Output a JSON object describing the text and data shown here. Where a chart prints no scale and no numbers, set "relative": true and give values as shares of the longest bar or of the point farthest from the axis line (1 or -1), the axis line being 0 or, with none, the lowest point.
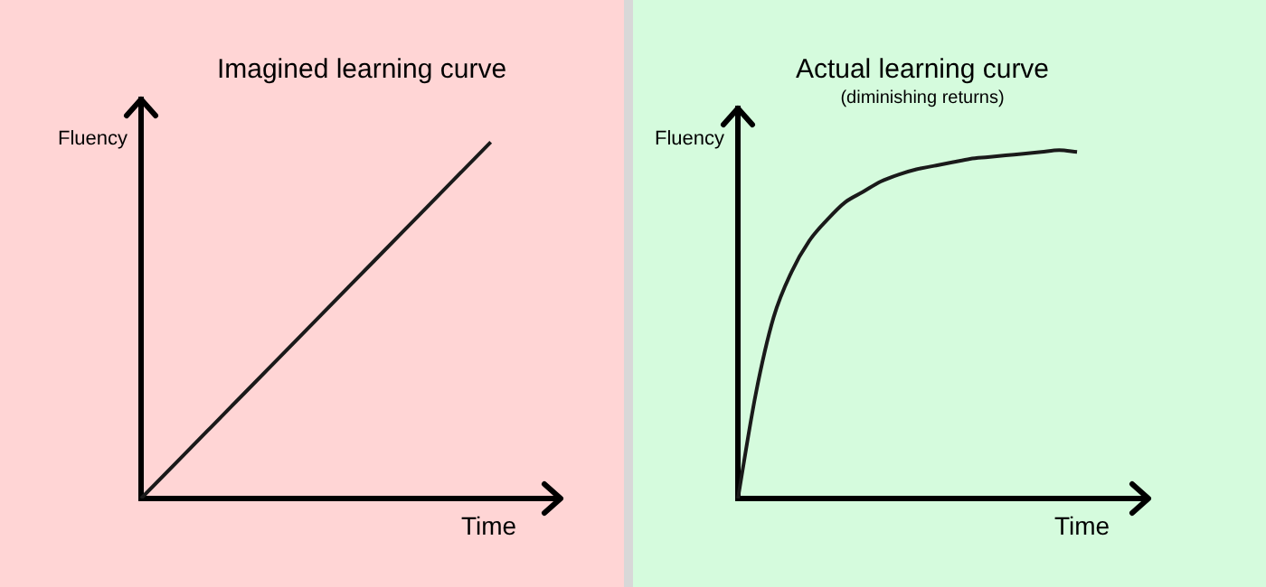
{
  "chart_data": [
    {
      "type": "line",
      "title": "Imagined learning curve",
      "xlabel": "Time",
      "ylabel": "Fluency",
      "relative": true,
      "tick_labels": false,
      "marker": "none",
      "line_style": "solid",
      "categories": [
        null,
        null,
        null,
        null,
        null,
        null,
        null
      ],
      "series": [
        {
          "color": "#1a1a1a",
          "values": [
            0,
            0.2,
            0.4,
            0.6,
            0.8,
            1,
            null
          ]
        }
      ]
    },
    {
      "type": "line",
      "title": "Actual learning curve",
      "subtitle": "(diminishing returns)",
      "xlabel": "Time",
      "ylabel": "Fluency",
      "relative": true,
      "tick_labels": false,
      "marker": "none",
      "line_style": "solid",
      "categories": [
        null,
        null,
        null,
        null,
        null,
        null,
        null,
        null,
        null,
        null,
        null,
        null,
        null,
        null,
        null,
        null,
        null,
        null,
        null,
        null,
        null,
        null,
        null,
        null
      ],
      "series": [
        {
          "color": "#1a1a1a",
          "values": [
            0,
            0.3,
            0.52,
            0.65,
            0.74,
            0.8,
            0.85,
            0.88,
            0.91,
            0.93,
            0.945,
            0.955,
            0.965,
            0.975,
            0.98,
            0.985,
            0.99,
            0.995,
            1,
            0.995,
            null,
            null,
            null,
            null
          ]
        }
      ]
    }
  ]
}
